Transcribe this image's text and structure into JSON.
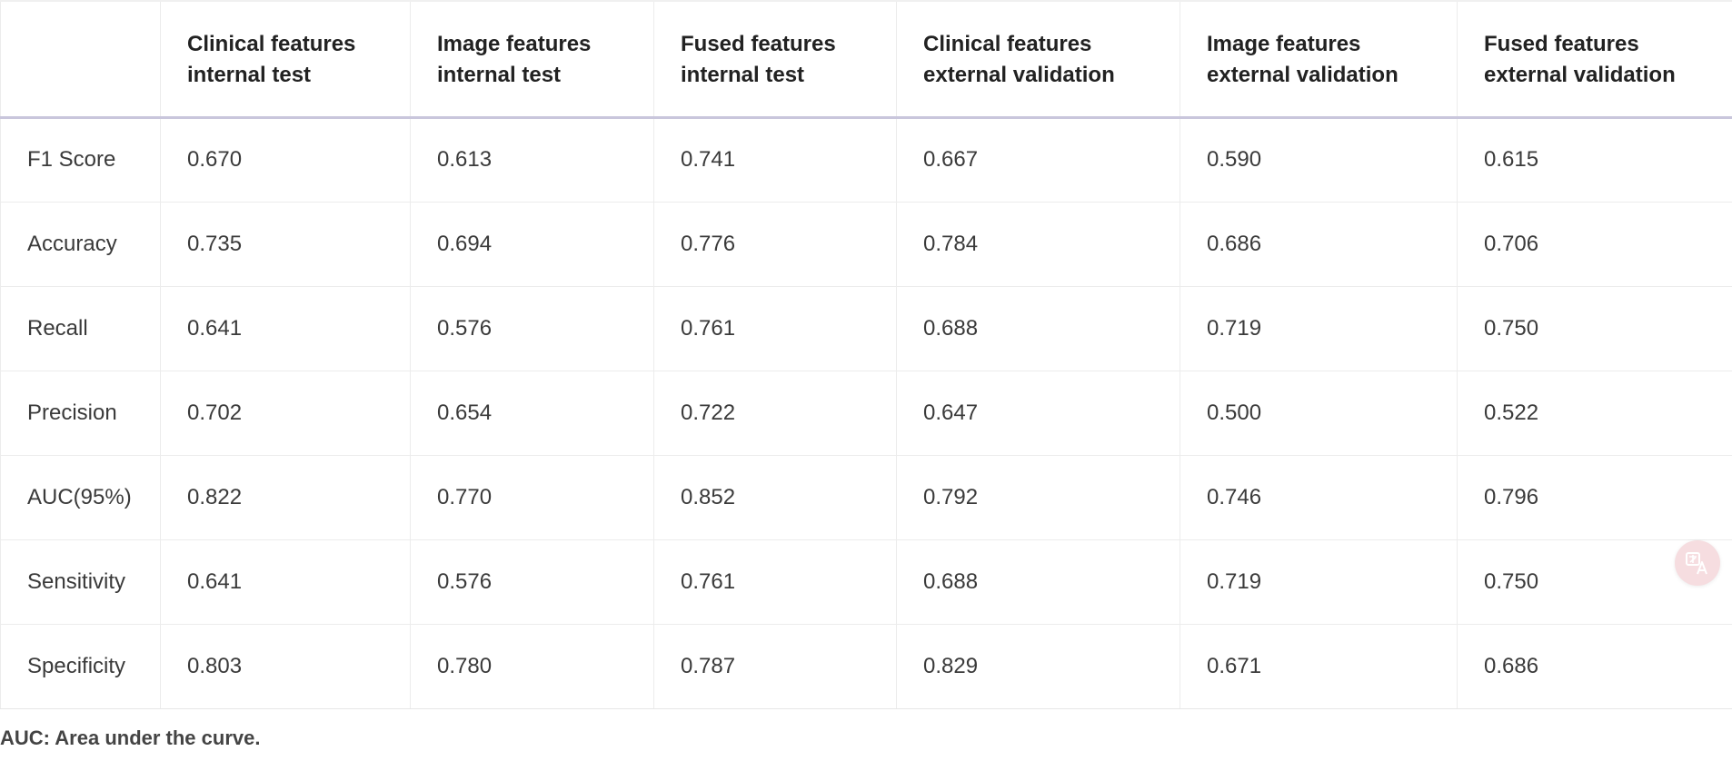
{
  "table": {
    "headers": [
      {
        "line1": "",
        "line2": ""
      },
      {
        "line1": "Clinical features",
        "line2": "internal test"
      },
      {
        "line1": "Image features",
        "line2": "internal test"
      },
      {
        "line1": "Fused features",
        "line2": "internal test"
      },
      {
        "line1": "Clinical features",
        "line2": "external validation"
      },
      {
        "line1": "Image features",
        "line2": "external validation"
      },
      {
        "line1": "Fused features",
        "line2": "external validation"
      }
    ],
    "rows": [
      {
        "metric": "F1 Score",
        "values": [
          "0.670",
          "0.613",
          "0.741",
          "0.667",
          "0.590",
          "0.615"
        ]
      },
      {
        "metric": "Accuracy",
        "values": [
          "0.735",
          "0.694",
          "0.776",
          "0.784",
          "0.686",
          "0.706"
        ]
      },
      {
        "metric": "Recall",
        "values": [
          "0.641",
          "0.576",
          "0.761",
          "0.688",
          "0.719",
          "0.750"
        ]
      },
      {
        "metric": "Precision",
        "values": [
          "0.702",
          "0.654",
          "0.722",
          "0.647",
          "0.500",
          "0.522"
        ]
      },
      {
        "metric": "AUC(95%)",
        "values": [
          "0.822",
          "0.770",
          "0.852",
          "0.792",
          "0.746",
          "0.796"
        ]
      },
      {
        "metric": "Sensitivity",
        "values": [
          "0.641",
          "0.576",
          "0.761",
          "0.688",
          "0.719",
          "0.750"
        ]
      },
      {
        "metric": "Specificity",
        "values": [
          "0.803",
          "0.780",
          "0.787",
          "0.829",
          "0.671",
          "0.686"
        ]
      }
    ]
  },
  "footnote": "AUC: Area under the curve.",
  "translate_badge": {
    "icon": "translate-icon",
    "color": "#f6dde0"
  }
}
